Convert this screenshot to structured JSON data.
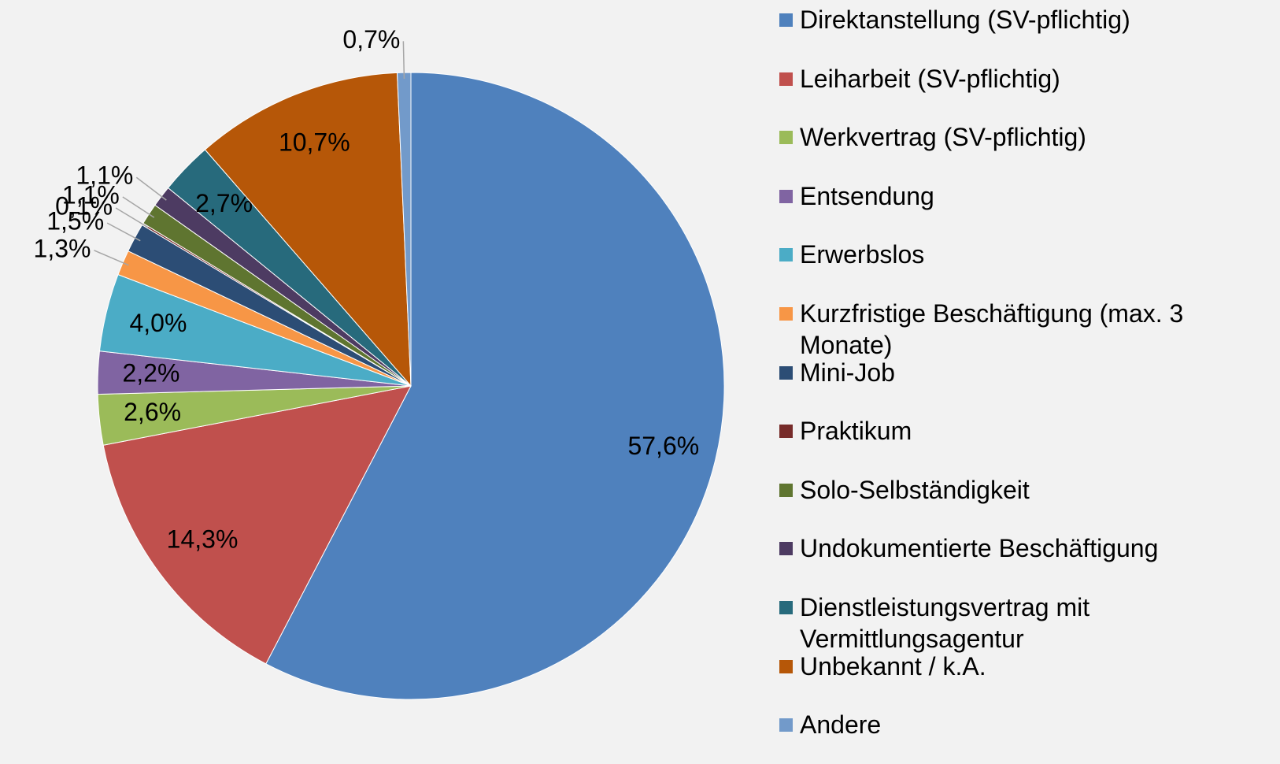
{
  "chart_data": {
    "type": "pie",
    "categories": [
      "Direktanstellung (SV-pflichtig)",
      "Leiharbeit (SV-pflichtig)",
      "Werkvertrag (SV-pflichtig)",
      "Entsendung",
      "Erwerbslos",
      "Kurzfristige Beschäftigung (max. 3 Monate)",
      "Mini-Job",
      "Praktikum",
      "Solo-Selbständigkeit",
      "Undokumentierte Beschäftigung",
      "Dienstleistungsvertrag mit Vermittlungsagentur",
      "Unbekannt / k.A.",
      "Andere"
    ],
    "values": [
      57.6,
      14.3,
      2.6,
      2.2,
      4.0,
      1.3,
      1.5,
      0.1,
      1.1,
      1.1,
      2.7,
      10.7,
      0.7
    ],
    "value_labels": [
      "57,6%",
      "14,3%",
      "2,6%",
      "2,2%",
      "4,0%",
      "1,3%",
      "1,5%",
      "0,1%",
      "1,1%",
      "1,1%",
      "2,7%",
      "10,7%",
      "0,7%"
    ],
    "colors": [
      "#4f81bd",
      "#c0504d",
      "#9bbb59",
      "#8064a2",
      "#4bacc6",
      "#f79646",
      "#2c4d75",
      "#772c2a",
      "#5f7530",
      "#4d3b62",
      "#276a7c",
      "#b65708",
      "#729aca"
    ],
    "legend": "right"
  }
}
